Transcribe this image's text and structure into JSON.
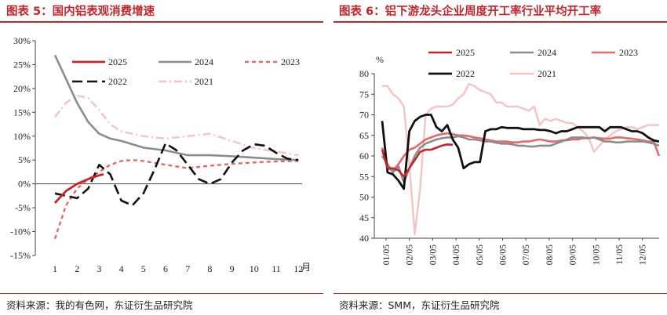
{
  "left_panel": {
    "title": "图表 5：国内铝表观消费增速",
    "source": "资料来源：我的有色网，东证衍生品研究院"
  },
  "right_panel": {
    "title": "图表 6：铝下游龙头企业周度开工率行业平均开工率",
    "source": "资料来源：SMM，东证衍生品研究院"
  },
  "colors": {
    "2025": "#c0272d",
    "2024": "#8c8c8c",
    "2023": "#e06b6b",
    "2022": "#111111",
    "2021": "#f2c4c4",
    "accent": "#c0272d"
  },
  "chart_data": [
    {
      "type": "line",
      "title": "国内铝表观消费增速",
      "xlabel": "月",
      "ylabel": "",
      "x": [
        1,
        2,
        3,
        4,
        5,
        6,
        7,
        8,
        9,
        10,
        11,
        12
      ],
      "x_ticks": [
        "1",
        "2",
        "3",
        "4",
        "5",
        "6",
        "7",
        "8",
        "9",
        "10",
        "11",
        "12"
      ],
      "x_unit": "月",
      "y_ticks": [
        "30%",
        "25%",
        "20%",
        "15%",
        "10%",
        "5%",
        "0%",
        "-5%",
        "-10%",
        "-15%"
      ],
      "ylim": [
        -15,
        30
      ],
      "legend_position": "top",
      "series": [
        {
          "name": "2025",
          "style": "solid",
          "x": [
            1,
            1.5,
            2,
            2.5,
            3,
            3.2
          ],
          "values": [
            -4,
            -1.5,
            0,
            1,
            1.8,
            2.0
          ]
        },
        {
          "name": "2024",
          "style": "solid",
          "x": [
            1,
            1.5,
            2,
            2.5,
            3,
            3.5,
            4,
            4.5,
            5,
            6,
            7,
            8,
            9,
            10,
            11,
            12
          ],
          "values": [
            27,
            22,
            17,
            13,
            10.5,
            9.5,
            9,
            8.3,
            7.6,
            7.0,
            6.0,
            6.0,
            5.8,
            5.5,
            5.2,
            5.0
          ]
        },
        {
          "name": "2023",
          "style": "dash",
          "x": [
            1,
            1.5,
            2,
            2.5,
            3,
            3.5,
            4,
            4.5,
            5,
            6,
            7,
            8,
            9,
            10,
            11,
            12
          ],
          "values": [
            -11.5,
            -4.5,
            -1,
            1,
            2.5,
            4,
            4.8,
            5,
            4.8,
            4,
            3.3,
            3.8,
            4.2,
            4.5,
            4.7,
            4.8
          ]
        },
        {
          "name": "2022",
          "style": "longdash",
          "x": [
            1,
            1.5,
            2,
            2.5,
            3,
            3.5,
            4,
            4.5,
            5,
            5.5,
            6,
            6.5,
            7,
            7.5,
            8,
            8.5,
            9,
            9.5,
            10,
            10.5,
            11,
            11.5,
            12
          ],
          "values": [
            -2,
            -2.5,
            -3,
            -1,
            4,
            2,
            -3.5,
            -4.5,
            -2,
            3,
            8.5,
            7,
            4,
            1,
            0,
            1,
            4.5,
            7,
            8.3,
            8,
            6.5,
            5.3,
            5.0
          ]
        },
        {
          "name": "2021",
          "style": "dashdot",
          "x": [
            1,
            1.5,
            2,
            2.5,
            3,
            3.5,
            4,
            4.5,
            5,
            6,
            7,
            8,
            9,
            10,
            11,
            12
          ],
          "values": [
            14,
            17,
            18.5,
            18,
            15.5,
            12.5,
            11,
            10.5,
            10,
            9.5,
            10,
            10.5,
            9,
            7.5,
            6.8,
            6.0
          ]
        }
      ]
    },
    {
      "type": "line",
      "title": "铝下游龙头企业周度开工率行业平均开工率",
      "xlabel": "",
      "ylabel": "%",
      "x_ticks": [
        "01/05",
        "02/05",
        "03/05",
        "04/05",
        "05/05",
        "06/05",
        "07/05",
        "08/05",
        "09/05",
        "10/05",
        "11/05",
        "12/05"
      ],
      "x_unit": "week (1-52)",
      "y_ticks": [
        "80",
        "75",
        "70",
        "65",
        "60",
        "55",
        "50",
        "45",
        "40"
      ],
      "ylim": [
        40,
        80
      ],
      "legend_position": "top",
      "series": [
        {
          "name": "2025",
          "x": [
            1,
            2,
            3,
            4,
            5,
            6,
            7,
            8,
            9,
            10,
            11,
            12,
            13,
            14
          ],
          "values": [
            61.5,
            57,
            57,
            56.5,
            55,
            57,
            59,
            61,
            61.5,
            61.5,
            62,
            62.5,
            62.8,
            62.7
          ]
        },
        {
          "name": "2024",
          "x": [
            1,
            2,
            3,
            4,
            5,
            6,
            7,
            8,
            9,
            10,
            11,
            12,
            13,
            14,
            15,
            16,
            17,
            18,
            19,
            20,
            21,
            22,
            23,
            24,
            25,
            26,
            27,
            28,
            29,
            30,
            31,
            32,
            33,
            34,
            35,
            36,
            37,
            38,
            39,
            40,
            41,
            42,
            43,
            44,
            45,
            46,
            47,
            48,
            49,
            50,
            51,
            52
          ],
          "values": [
            60,
            58,
            56,
            57.5,
            53.5,
            57,
            60,
            62,
            63,
            63.5,
            64,
            64.3,
            64.5,
            64.5,
            64.8,
            64.5,
            64,
            64,
            63.8,
            63.5,
            63.5,
            63.2,
            63,
            63,
            62.8,
            62.5,
            62.5,
            62.3,
            62.3,
            62.5,
            62.5,
            62.5,
            63,
            63.5,
            64,
            64.5,
            64.5,
            64.5,
            64.3,
            64.5,
            64,
            63.5,
            63.5,
            63.3,
            63.3,
            63.5,
            63.5,
            63.5,
            63.5,
            63.3,
            63,
            62.5
          ]
        },
        {
          "name": "2023",
          "x": [
            1,
            2,
            3,
            4,
            5,
            6,
            7,
            8,
            9,
            10,
            11,
            12,
            13,
            14,
            15,
            16,
            17,
            18,
            19,
            20,
            21,
            22,
            23,
            24,
            25,
            26,
            27,
            28,
            29,
            30,
            31,
            32,
            33,
            34,
            35,
            36,
            37,
            38,
            39,
            40,
            41,
            42,
            43,
            44,
            45,
            46,
            47,
            48,
            49,
            50,
            51,
            52
          ],
          "values": [
            62,
            57,
            56.5,
            58,
            60,
            61.5,
            62,
            63,
            64,
            64.5,
            65,
            65.3,
            65.5,
            65.3,
            65,
            65,
            64.8,
            64.5,
            64.3,
            64,
            63.8,
            63.5,
            63.5,
            63.5,
            63.3,
            63.3,
            63.5,
            63.5,
            63.8,
            64,
            63.8,
            63.5,
            63.5,
            63.8,
            63.8,
            64,
            64,
            64.3,
            64.3,
            64.5,
            64.3,
            64.2,
            64.2,
            64.5,
            64.5,
            64.3,
            64.2,
            64,
            63.8,
            63.5,
            63.5,
            60
          ]
        },
        {
          "name": "2022",
          "x": [
            1,
            2,
            3,
            4,
            5,
            6,
            7,
            8,
            9,
            10,
            11,
            12,
            13,
            14,
            15,
            16,
            17,
            18,
            19,
            20,
            21,
            22,
            23,
            24,
            25,
            26,
            27,
            28,
            29,
            30,
            31,
            32,
            33,
            34,
            35,
            36,
            37,
            38,
            39,
            40,
            41,
            42,
            43,
            44,
            45,
            46,
            47,
            48,
            49,
            50,
            51,
            52
          ],
          "values": [
            68.5,
            56,
            55.5,
            54,
            52,
            66,
            68.5,
            69.5,
            70,
            70,
            67,
            66,
            67.5,
            64,
            62,
            57,
            58,
            58.5,
            58.5,
            66,
            66.5,
            66.5,
            67,
            66.8,
            66.8,
            66.8,
            66.5,
            66.5,
            66.5,
            66.3,
            66.3,
            66,
            65.5,
            66,
            66,
            66.5,
            67,
            67,
            67,
            67,
            67,
            66,
            67,
            67,
            67,
            66.5,
            66,
            66,
            65.5,
            64.5,
            63.8,
            63.5
          ]
        },
        {
          "name": "2021",
          "x": [
            1,
            2,
            3,
            4,
            5,
            6,
            7,
            8,
            9,
            10,
            11,
            12,
            13,
            14,
            15,
            16,
            17,
            18,
            19,
            20,
            21,
            22,
            23,
            24,
            25,
            26,
            27,
            28,
            29,
            30,
            31,
            32,
            33,
            34,
            35,
            36,
            37,
            38,
            39,
            40,
            41,
            42,
            43,
            44,
            45,
            46,
            47,
            48,
            49,
            50,
            51,
            52
          ],
          "values": [
            77,
            77,
            75,
            74,
            72,
            58,
            41,
            52,
            70,
            71.5,
            72,
            72,
            72,
            72.5,
            74,
            75,
            77.5,
            77,
            76,
            75.5,
            75,
            73,
            73,
            72,
            72,
            72,
            71.5,
            71,
            72,
            67.5,
            69,
            68.5,
            69,
            68.5,
            68,
            68,
            67,
            66,
            64.5,
            61,
            62.5,
            64,
            65,
            66,
            66.5,
            67,
            67,
            66.5,
            67,
            67.5,
            67.5,
            67.5
          ]
        }
      ]
    }
  ]
}
